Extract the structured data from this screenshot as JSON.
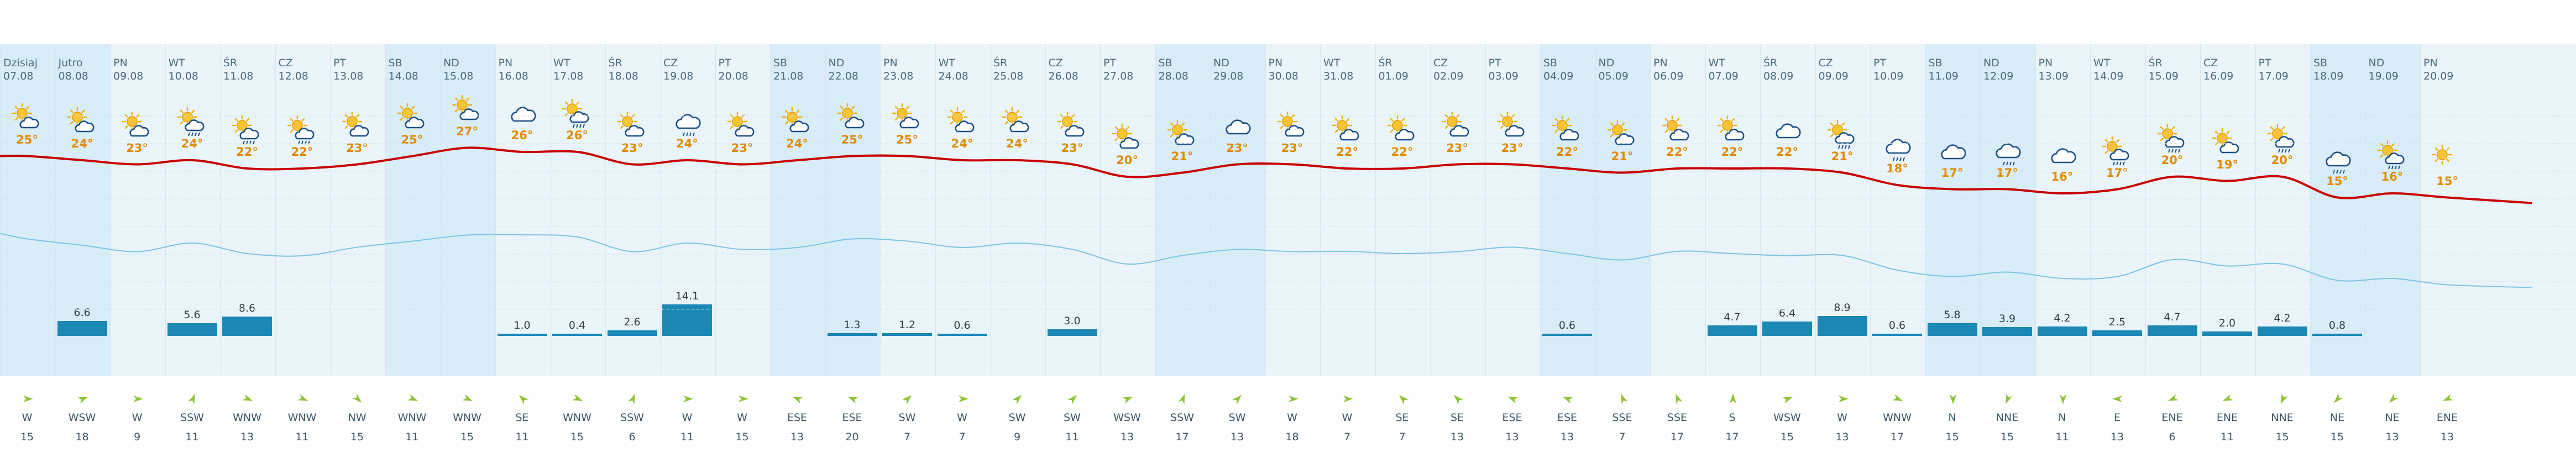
{
  "colors": {
    "accent_line": "#c80000",
    "humidity_line": "#7cc4e4",
    "bar": "#1c88b6",
    "temp_text": "#e08a00",
    "weekend_bg": "#d8edf8",
    "weekday_bg": "#eaf5fb"
  },
  "days": [
    {
      "label": "Dzisiaj",
      "date": "07.08",
      "icon": "sun-cloud-icon",
      "temp": "25°",
      "precip": "",
      "wind_dir": "W",
      "wind_speed": "15",
      "weekend": true
    },
    {
      "label": "Jutro",
      "date": "08.08",
      "icon": "sun-cloud-icon",
      "temp": "24°",
      "precip": "6.6",
      "wind_dir": "WSW",
      "wind_speed": "18",
      "weekend": true
    },
    {
      "label": "PN",
      "date": "09.08",
      "icon": "sun-cloud-icon",
      "temp": "23°",
      "precip": "",
      "wind_dir": "W",
      "wind_speed": "9",
      "weekend": false
    },
    {
      "label": "WT",
      "date": "10.08",
      "icon": "sun-rain-icon",
      "temp": "24°",
      "precip": "5.6",
      "wind_dir": "SSW",
      "wind_speed": "11",
      "weekend": false
    },
    {
      "label": "ŚR",
      "date": "11.08",
      "icon": "sun-rain-icon",
      "temp": "22°",
      "precip": "8.6",
      "wind_dir": "WNW",
      "wind_speed": "13",
      "weekend": false
    },
    {
      "label": "CZ",
      "date": "12.08",
      "icon": "sun-rain-icon",
      "temp": "22°",
      "precip": "",
      "wind_dir": "WNW",
      "wind_speed": "11",
      "weekend": false
    },
    {
      "label": "PT",
      "date": "13.08",
      "icon": "sun-cloud-icon",
      "temp": "23°",
      "precip": "",
      "wind_dir": "NW",
      "wind_speed": "15",
      "weekend": false
    },
    {
      "label": "SB",
      "date": "14.08",
      "icon": "sun-cloud-icon",
      "temp": "25°",
      "precip": "",
      "wind_dir": "WNW",
      "wind_speed": "11",
      "weekend": true
    },
    {
      "label": "ND",
      "date": "15.08",
      "icon": "sun-cloud-icon",
      "temp": "27°",
      "precip": "",
      "wind_dir": "WNW",
      "wind_speed": "15",
      "weekend": true
    },
    {
      "label": "PN",
      "date": "16.08",
      "icon": "cloud-icon",
      "temp": "26°",
      "precip": "1.0",
      "wind_dir": "SE",
      "wind_speed": "11",
      "weekend": false
    },
    {
      "label": "WT",
      "date": "17.08",
      "icon": "sun-rain-icon",
      "temp": "26°",
      "precip": "0.4",
      "wind_dir": "WNW",
      "wind_speed": "15",
      "weekend": false
    },
    {
      "label": "ŚR",
      "date": "18.08",
      "icon": "sun-cloud-icon",
      "temp": "23°",
      "precip": "2.6",
      "wind_dir": "SSW",
      "wind_speed": "6",
      "weekend": false
    },
    {
      "label": "CZ",
      "date": "19.08",
      "icon": "cloud-rain-icon",
      "temp": "24°",
      "precip": "14.1",
      "wind_dir": "W",
      "wind_speed": "11",
      "weekend": false
    },
    {
      "label": "PT",
      "date": "20.08",
      "icon": "sun-cloud-icon",
      "temp": "23°",
      "precip": "",
      "wind_dir": "W",
      "wind_speed": "15",
      "weekend": false
    },
    {
      "label": "SB",
      "date": "21.08",
      "icon": "sun-cloud-icon",
      "temp": "24°",
      "precip": "",
      "wind_dir": "ESE",
      "wind_speed": "13",
      "weekend": true
    },
    {
      "label": "ND",
      "date": "22.08",
      "icon": "sun-cloud-icon",
      "temp": "25°",
      "precip": "1.3",
      "wind_dir": "ESE",
      "wind_speed": "20",
      "weekend": true
    },
    {
      "label": "PN",
      "date": "23.08",
      "icon": "sun-cloud-icon",
      "temp": "25°",
      "precip": "1.2",
      "wind_dir": "SW",
      "wind_speed": "7",
      "weekend": false
    },
    {
      "label": "WT",
      "date": "24.08",
      "icon": "sun-cloud-icon",
      "temp": "24°",
      "precip": "0.6",
      "wind_dir": "W",
      "wind_speed": "7",
      "weekend": false
    },
    {
      "label": "ŚR",
      "date": "25.08",
      "icon": "sun-cloud-icon",
      "temp": "24°",
      "precip": "",
      "wind_dir": "SW",
      "wind_speed": "9",
      "weekend": false
    },
    {
      "label": "CZ",
      "date": "26.08",
      "icon": "sun-cloud-icon",
      "temp": "23°",
      "precip": "3.0",
      "wind_dir": "SW",
      "wind_speed": "11",
      "weekend": false
    },
    {
      "label": "PT",
      "date": "27.08",
      "icon": "sun-cloud-icon",
      "temp": "20°",
      "precip": "",
      "wind_dir": "WSW",
      "wind_speed": "13",
      "weekend": false
    },
    {
      "label": "SB",
      "date": "28.08",
      "icon": "sun-cloud-icon",
      "temp": "21°",
      "precip": "",
      "wind_dir": "SSW",
      "wind_speed": "17",
      "weekend": true
    },
    {
      "label": "ND",
      "date": "29.08",
      "icon": "cloud-icon",
      "temp": "23°",
      "precip": "",
      "wind_dir": "SW",
      "wind_speed": "13",
      "weekend": true
    },
    {
      "label": "PN",
      "date": "30.08",
      "icon": "sun-cloud-icon",
      "temp": "23°",
      "precip": "",
      "wind_dir": "W",
      "wind_speed": "18",
      "weekend": false
    },
    {
      "label": "WT",
      "date": "31.08",
      "icon": "sun-cloud-icon",
      "temp": "22°",
      "precip": "",
      "wind_dir": "W",
      "wind_speed": "7",
      "weekend": false
    },
    {
      "label": "ŚR",
      "date": "01.09",
      "icon": "sun-cloud-icon",
      "temp": "22°",
      "precip": "",
      "wind_dir": "SE",
      "wind_speed": "7",
      "weekend": false
    },
    {
      "label": "CZ",
      "date": "02.09",
      "icon": "sun-cloud-icon",
      "temp": "23°",
      "precip": "",
      "wind_dir": "SE",
      "wind_speed": "13",
      "weekend": false
    },
    {
      "label": "PT",
      "date": "03.09",
      "icon": "sun-cloud-icon",
      "temp": "23°",
      "precip": "",
      "wind_dir": "ESE",
      "wind_speed": "13",
      "weekend": false
    },
    {
      "label": "SB",
      "date": "04.09",
      "icon": "sun-cloud-icon",
      "temp": "22°",
      "precip": "0.6",
      "wind_dir": "ESE",
      "wind_speed": "13",
      "weekend": true
    },
    {
      "label": "ND",
      "date": "05.09",
      "icon": "sun-cloud-icon",
      "temp": "21°",
      "precip": "",
      "wind_dir": "SSE",
      "wind_speed": "7",
      "weekend": true
    },
    {
      "label": "PN",
      "date": "06.09",
      "icon": "sun-cloud-icon",
      "temp": "22°",
      "precip": "",
      "wind_dir": "SSE",
      "wind_speed": "17",
      "weekend": false
    },
    {
      "label": "WT",
      "date": "07.09",
      "icon": "sun-cloud-icon",
      "temp": "22°",
      "precip": "4.7",
      "wind_dir": "S",
      "wind_speed": "17",
      "weekend": false
    },
    {
      "label": "ŚR",
      "date": "08.09",
      "icon": "cloud-icon",
      "temp": "22°",
      "precip": "6.4",
      "wind_dir": "WSW",
      "wind_speed": "15",
      "weekend": false
    },
    {
      "label": "CZ",
      "date": "09.09",
      "icon": "sun-rain-icon",
      "temp": "21°",
      "precip": "8.9",
      "wind_dir": "W",
      "wind_speed": "13",
      "weekend": false
    },
    {
      "label": "PT",
      "date": "10.09",
      "icon": "cloud-rain-icon",
      "temp": "18°",
      "precip": "0.6",
      "wind_dir": "WNW",
      "wind_speed": "17",
      "weekend": false
    },
    {
      "label": "SB",
      "date": "11.09",
      "icon": "cloud-icon",
      "temp": "17°",
      "precip": "5.8",
      "wind_dir": "N",
      "wind_speed": "15",
      "weekend": true
    },
    {
      "label": "ND",
      "date": "12.09",
      "icon": "cloud-rain-icon",
      "temp": "17°",
      "precip": "3.9",
      "wind_dir": "NNE",
      "wind_speed": "15",
      "weekend": true
    },
    {
      "label": "PN",
      "date": "13.09",
      "icon": "cloud-icon",
      "temp": "16°",
      "precip": "4.2",
      "wind_dir": "N",
      "wind_speed": "11",
      "weekend": false
    },
    {
      "label": "WT",
      "date": "14.09",
      "icon": "sun-rain-icon",
      "temp": "17°",
      "precip": "2.5",
      "wind_dir": "E",
      "wind_speed": "13",
      "weekend": false
    },
    {
      "label": "ŚR",
      "date": "15.09",
      "icon": "sun-rain-icon",
      "temp": "20°",
      "precip": "4.7",
      "wind_dir": "ENE",
      "wind_speed": "6",
      "weekend": false
    },
    {
      "label": "CZ",
      "date": "16.09",
      "icon": "sun-cloud-icon",
      "temp": "19°",
      "precip": "2.0",
      "wind_dir": "ENE",
      "wind_speed": "11",
      "weekend": false
    },
    {
      "label": "PT",
      "date": "17.09",
      "icon": "sun-rain-icon",
      "temp": "20°",
      "precip": "4.2",
      "wind_dir": "NNE",
      "wind_speed": "15",
      "weekend": false
    },
    {
      "label": "SB",
      "date": "18.09",
      "icon": "cloud-rain-icon",
      "temp": "15°",
      "precip": "0.8",
      "wind_dir": "NE",
      "wind_speed": "15",
      "weekend": true
    },
    {
      "label": "ND",
      "date": "19.09",
      "icon": "sun-rain-icon",
      "temp": "16°",
      "precip": "",
      "wind_dir": "NE",
      "wind_speed": "13",
      "weekend": true
    },
    {
      "label": "PN",
      "date": "20.09",
      "icon": "sun-icon",
      "temp": "15°",
      "precip": "",
      "wind_dir": "ENE",
      "wind_speed": "13",
      "weekend": false
    }
  ]
}
